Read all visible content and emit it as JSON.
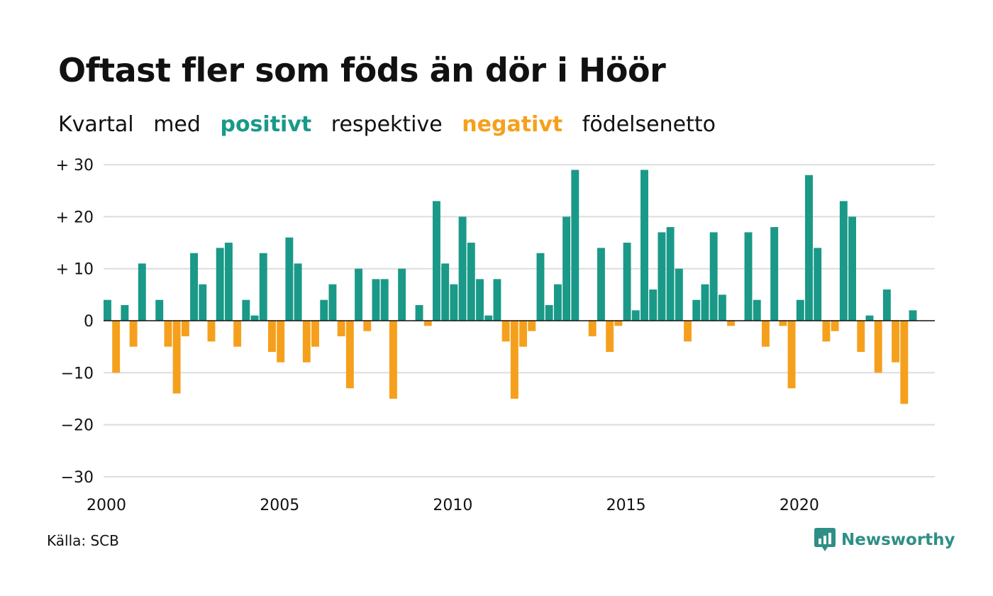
{
  "title": "Oftast fler som föds än dör i Höör",
  "subtitle": {
    "parts": [
      "Kvartal",
      "med",
      "positivt",
      "respektive",
      "negativt",
      "födelsenetto"
    ]
  },
  "source": "Källa: SCB",
  "brand": {
    "name": "Newsworthy",
    "icon": "newsworthy-logo-icon"
  },
  "colors": {
    "positive": "#1a9988",
    "negative": "#f5a01c",
    "grid": "#dddddd",
    "axis": "#111111"
  },
  "chart_data": {
    "type": "bar",
    "xlabel": "",
    "ylabel": "",
    "ylim": [
      -30,
      30
    ],
    "yticks": [
      30,
      20,
      10,
      0,
      -10,
      -20,
      -30
    ],
    "ytick_labels": [
      "+ 30",
      "+ 20",
      "+ 10",
      "0",
      "−10",
      "−20",
      "−30"
    ],
    "xlim": [
      2000,
      2023.75
    ],
    "xticks": [
      2000,
      2005,
      2010,
      2015,
      2020
    ],
    "xtick_labels": [
      "2000",
      "2005",
      "2010",
      "2015",
      "2020"
    ],
    "grid": true,
    "start_year": 2000,
    "start_quarter": 1,
    "values": [
      4,
      -10,
      3,
      -5,
      11,
      0,
      4,
      -5,
      -14,
      -3,
      13,
      7,
      -4,
      14,
      15,
      -5,
      4,
      1,
      13,
      -6,
      -8,
      16,
      11,
      -8,
      -5,
      4,
      7,
      -3,
      -13,
      10,
      -2,
      8,
      8,
      -15,
      10,
      0,
      3,
      -1,
      23,
      11,
      7,
      20,
      15,
      8,
      1,
      8,
      -4,
      -15,
      -5,
      -2,
      13,
      3,
      7,
      20,
      29,
      0,
      -3,
      14,
      -6,
      -1,
      15,
      2,
      29,
      6,
      17,
      18,
      10,
      -4,
      4,
      7,
      17,
      5,
      -1,
      0,
      17,
      4,
      -5,
      18,
      -1,
      -13,
      4,
      28,
      14,
      -4,
      -2,
      23,
      20,
      -6,
      1,
      -10,
      6,
      -8,
      -16,
      2
    ]
  }
}
